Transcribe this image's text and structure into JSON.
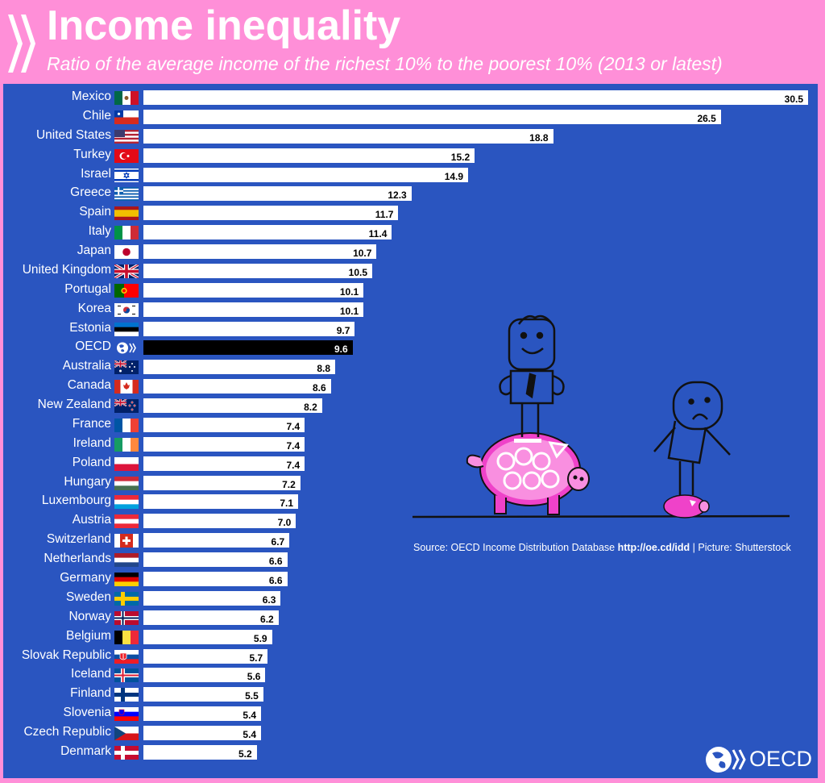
{
  "header": {
    "title": "Income inequality",
    "subtitle": "Ratio of the average income of the richest 10% to the poorest 10% (2013 or latest)"
  },
  "source": {
    "prefix": "Source: OECD Income Distribution Database ",
    "link": "http://oe.cd/idd",
    "suffix": " | Picture: Shutterstock"
  },
  "footer": {
    "logo_text": "OECD"
  },
  "colors": {
    "background": "#ff8fd8",
    "panel": "#2a55c0",
    "bar": "#ffffff",
    "highlight_bar": "#000000"
  },
  "chart_data": {
    "type": "bar",
    "orientation": "horizontal",
    "title": "Income inequality",
    "subtitle": "Ratio of the average income of the richest 10% to the poorest 10% (2013 or latest)",
    "highlight": "OECD",
    "categories": [
      "Mexico",
      "Chile",
      "United States",
      "Turkey",
      "Israel",
      "Greece",
      "Spain",
      "Italy",
      "Japan",
      "United Kingdom",
      "Portugal",
      "Korea",
      "Estonia",
      "OECD",
      "Australia",
      "Canada",
      "New Zealand",
      "France",
      "Ireland",
      "Poland",
      "Hungary",
      "Luxembourg",
      "Austria",
      "Switzerland",
      "Netherlands",
      "Germany",
      "Sweden",
      "Norway",
      "Belgium",
      "Slovak Republic",
      "Iceland",
      "Finland",
      "Slovenia",
      "Czech Republic",
      "Denmark"
    ],
    "values": [
      30.5,
      26.5,
      18.8,
      15.2,
      14.9,
      12.3,
      11.7,
      11.4,
      10.7,
      10.5,
      10.1,
      10.1,
      9.7,
      9.6,
      8.8,
      8.6,
      8.2,
      7.4,
      7.4,
      7.4,
      7.2,
      7.1,
      7.0,
      6.7,
      6.6,
      6.6,
      6.3,
      6.2,
      5.9,
      5.7,
      5.6,
      5.5,
      5.4,
      5.4,
      5.2
    ],
    "value_labels": [
      "30.5",
      "26.5",
      "18.8",
      "15.2",
      "14.9",
      "12.3",
      "11.7",
      "11.4",
      "10.7",
      "10.5",
      "10.1",
      "10.1",
      "9.7",
      "9.6",
      "8.8",
      "8.6",
      "8.2",
      "7.4",
      "7.4",
      "7.4",
      "7.2",
      "7.1",
      "7.0",
      "6.7",
      "6.6",
      "6.6",
      "6.3",
      "6.2",
      "5.9",
      "5.7",
      "5.6",
      "5.5",
      "5.4",
      "5.4",
      "5.2"
    ],
    "flags": [
      "mexico",
      "chile",
      "united-states",
      "turkey",
      "israel",
      "greece",
      "spain",
      "italy",
      "japan",
      "united-kingdom",
      "portugal",
      "korea",
      "estonia",
      "oecd",
      "australia",
      "canada",
      "new-zealand",
      "france",
      "ireland",
      "poland",
      "hungary",
      "luxembourg",
      "austria",
      "switzerland",
      "netherlands",
      "germany",
      "sweden",
      "norway",
      "belgium",
      "slovak-republic",
      "iceland",
      "finland",
      "slovenia",
      "czech-republic",
      "denmark"
    ],
    "xlim": [
      0,
      30.5
    ]
  }
}
